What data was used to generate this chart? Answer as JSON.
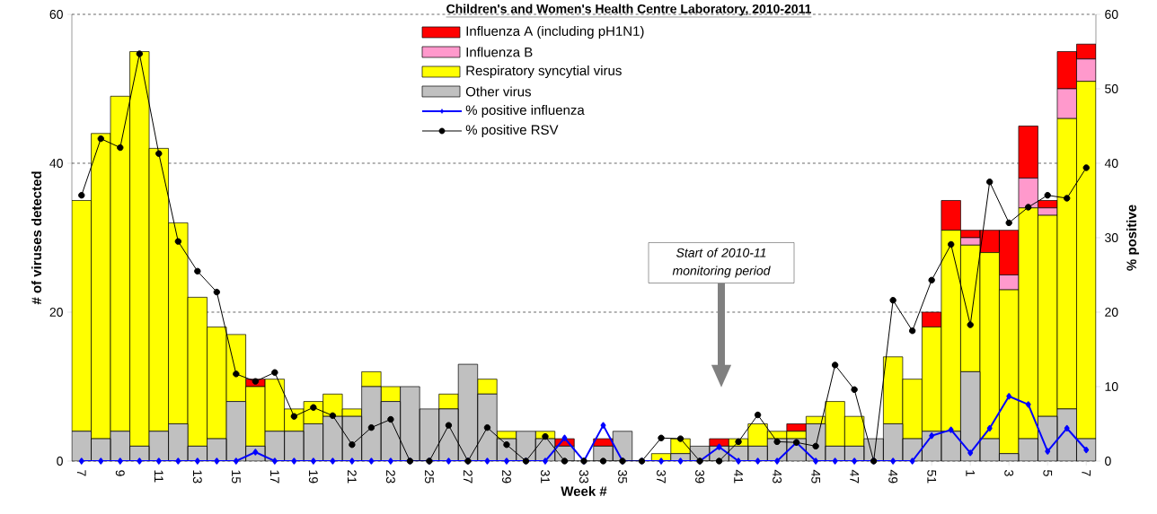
{
  "chart_data": {
    "type": "bar",
    "stacked": true,
    "title": "Children's and Women's Health Centre Laboratory, 2010-2011",
    "xlabel": "Week #",
    "ylabel": "# of viruses detected",
    "y2label": "% positive",
    "categories": [
      "7",
      null,
      "9",
      null,
      "11",
      null,
      "13",
      null,
      "15",
      null,
      "17",
      null,
      "19",
      null,
      "21",
      null,
      "23",
      null,
      "25",
      null,
      "27",
      null,
      "29",
      null,
      "31",
      null,
      "33",
      null,
      "35",
      null,
      "37",
      null,
      "39",
      null,
      "41",
      null,
      "43",
      null,
      "45",
      null,
      "47",
      null,
      "49",
      null,
      "51",
      null,
      "1",
      null,
      "3",
      null,
      "5",
      null,
      "7"
    ],
    "series": [
      {
        "name": "Other virus",
        "type": "bar",
        "color": "#c0c0c0",
        "values": [
          4,
          3,
          4,
          2,
          4,
          5,
          2,
          3,
          8,
          2,
          4,
          4,
          5,
          6,
          6,
          10,
          8,
          10,
          7,
          7,
          13,
          9,
          3,
          4,
          3,
          2,
          0,
          2,
          4,
          0,
          0,
          1,
          2,
          2,
          2,
          2,
          3,
          3,
          5,
          2,
          2,
          3,
          5,
          3,
          4,
          4,
          12,
          3,
          1,
          3,
          6,
          7,
          3
        ]
      },
      {
        "name": "Respiratory syncytial virus",
        "type": "bar",
        "color": "#ffff00",
        "values": [
          31,
          41,
          45,
          53,
          38,
          27,
          20,
          15,
          9,
          8,
          7,
          3,
          3,
          3,
          1,
          2,
          2,
          0,
          0,
          2,
          0,
          2,
          1,
          0,
          1,
          0,
          0,
          0,
          0,
          0,
          1,
          2,
          0,
          0,
          1,
          3,
          1,
          1,
          1,
          6,
          4,
          0,
          9,
          8,
          14,
          27,
          17,
          25,
          22,
          31,
          27,
          39,
          48
        ]
      },
      {
        "name": "Influenza B",
        "type": "bar",
        "color": "#ff99cc",
        "values": [
          0,
          0,
          0,
          0,
          0,
          0,
          0,
          0,
          0,
          0,
          0,
          0,
          0,
          0,
          0,
          0,
          0,
          0,
          0,
          0,
          0,
          0,
          0,
          0,
          0,
          0,
          0,
          0,
          0,
          0,
          0,
          0,
          0,
          0,
          0,
          0,
          0,
          0,
          0,
          0,
          0,
          0,
          0,
          0,
          0,
          0,
          1,
          0,
          2,
          4,
          1,
          4,
          3
        ]
      },
      {
        "name": "Influenza A (including pH1N1)",
        "type": "bar",
        "color": "#ff0000",
        "values": [
          0,
          0,
          0,
          0,
          0,
          0,
          0,
          0,
          0,
          1,
          0,
          0,
          0,
          0,
          0,
          0,
          0,
          0,
          0,
          0,
          0,
          0,
          0,
          0,
          0,
          1,
          0,
          1,
          0,
          0,
          0,
          0,
          0,
          1,
          0,
          0,
          0,
          1,
          0,
          0,
          0,
          0,
          0,
          0,
          2,
          4,
          1,
          3,
          6,
          7,
          1,
          5,
          2
        ]
      },
      {
        "name": "% positive influenza",
        "type": "line",
        "axis": "y2",
        "marker": "diamond",
        "color": "#0000ff",
        "values": [
          0,
          0,
          0,
          0,
          0,
          0,
          0,
          0,
          0,
          1.2,
          0,
          0,
          0,
          0,
          0,
          0,
          0,
          0,
          0,
          0,
          0,
          0,
          0,
          0,
          0,
          3.1,
          0,
          4.8,
          0,
          0,
          0,
          0,
          0,
          1.9,
          0,
          0,
          0,
          2.5,
          0,
          0,
          0,
          0,
          0,
          0,
          3.4,
          4.2,
          1.1,
          4.4,
          8.7,
          7.6,
          1.3,
          4.4,
          1.5
        ]
      },
      {
        "name": "% positive RSV",
        "type": "line",
        "axis": "y2",
        "marker": "circle",
        "color": "#000000",
        "values": [
          35.7,
          43.3,
          42.1,
          54.7,
          41.3,
          29.5,
          25.5,
          22.7,
          11.7,
          10.7,
          11.9,
          6.0,
          7.2,
          6.1,
          2.2,
          4.5,
          5.6,
          0,
          0,
          4.8,
          0,
          4.5,
          2.2,
          0,
          3.3,
          0,
          0,
          0,
          0,
          0,
          3.1,
          3.0,
          0,
          0,
          2.6,
          6.2,
          2.6,
          2.5,
          2.0,
          12.9,
          9.6,
          0,
          21.6,
          17.5,
          24.3,
          29.1,
          18.3,
          37.5,
          32.0,
          34.1,
          35.7,
          35.3,
          39.4
        ]
      }
    ],
    "ylim": [
      0,
      60
    ],
    "yticks": [
      0,
      20,
      40,
      60
    ],
    "y2lim": [
      0,
      60
    ],
    "y2ticks": [
      0,
      10,
      20,
      30,
      40,
      50,
      60
    ],
    "grid": "y",
    "legend": "top",
    "line_style": "solid",
    "annotations": [
      "Start of 2010-11 monitoring period"
    ]
  }
}
